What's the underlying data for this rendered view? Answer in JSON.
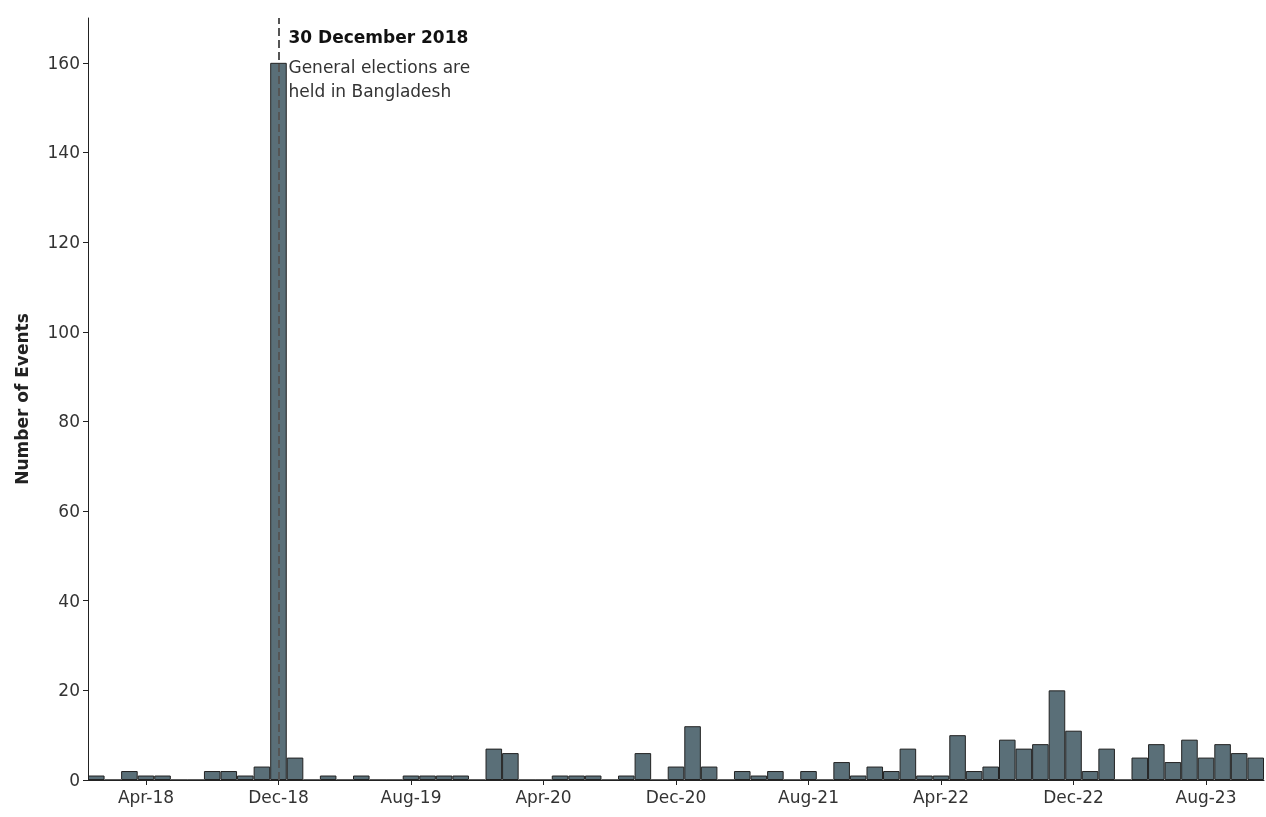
{
  "chart_data": {
    "type": "bar",
    "ylabel": "Number of Events",
    "categories": [
      null,
      null,
      null,
      "Apr-18",
      null,
      null,
      null,
      null,
      null,
      null,
      null,
      "Dec-18",
      null,
      null,
      null,
      null,
      null,
      null,
      null,
      "Aug-19",
      null,
      null,
      null,
      null,
      null,
      null,
      null,
      "Apr-20",
      null,
      null,
      null,
      null,
      null,
      null,
      null,
      "Dec-20",
      null,
      null,
      null,
      null,
      null,
      null,
      null,
      "Aug-21",
      null,
      null,
      null,
      null,
      null,
      null,
      null,
      "Apr-22",
      null,
      null,
      null,
      null,
      null,
      null,
      null,
      "Dec-22",
      null,
      null,
      null,
      null,
      null,
      null,
      null,
      "Aug-23",
      null,
      null,
      null
    ],
    "values": [
      1,
      0,
      2,
      1,
      1,
      0,
      0,
      2,
      2,
      1,
      3,
      160,
      5,
      0,
      1,
      0,
      1,
      0,
      0,
      1,
      1,
      1,
      1,
      0,
      7,
      6,
      0,
      0,
      1,
      1,
      1,
      0,
      1,
      6,
      0,
      3,
      12,
      3,
      0,
      2,
      1,
      2,
      0,
      2,
      0,
      4,
      1,
      3,
      2,
      7,
      1,
      1,
      10,
      2,
      3,
      9,
      7,
      8,
      20,
      11,
      2,
      7,
      0,
      5,
      8,
      4,
      9,
      5,
      8,
      6,
      5
    ],
    "color": "#5a6f78",
    "ylim": [
      0,
      170
    ],
    "yticks": [
      0,
      20,
      40,
      60,
      80,
      100,
      120,
      140,
      160
    ],
    "ref_lines": [
      {
        "axis": "x",
        "value": "Dec-18",
        "label": "30 December 2018",
        "line_style": "dashed",
        "color": "#555555"
      }
    ],
    "annotations": [
      {
        "text": "General elections are held in Bangladesh",
        "x": "Dec-18",
        "y": 160
      }
    ],
    "grid": false
  }
}
